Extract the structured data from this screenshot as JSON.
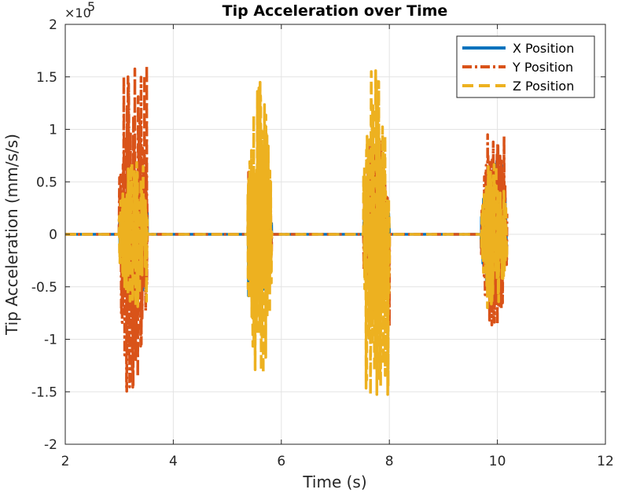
{
  "chart_data": {
    "type": "line",
    "title": "Tip Acceleration over Time",
    "xlabel": "Time (s)",
    "ylabel": "Tip Acceleration (mm/s/s)",
    "xlim": [
      2,
      12
    ],
    "ylim": [
      -200000,
      200000
    ],
    "xticks": [
      2,
      4,
      6,
      8,
      10,
      12
    ],
    "yticks": [
      -200000,
      -150000,
      -100000,
      -50000,
      0,
      50000,
      100000,
      150000,
      200000
    ],
    "xtick_labels": [
      "2",
      "4",
      "6",
      "8",
      "10",
      "12"
    ],
    "ytick_labels": [
      "-2",
      "-1.5",
      "-1",
      "-0.5",
      "0",
      "0.5",
      "1",
      "1.5",
      "2"
    ],
    "y_exponent_label": "×10",
    "y_exponent_power": "5",
    "grid": true,
    "legend_position": "top-right",
    "series": [
      {
        "name": "X Position",
        "color": "#0072BD",
        "style": "solid",
        "bursts": [
          {
            "t_start": 3.0,
            "t_end": 3.52,
            "amplitude": 60000
          },
          {
            "t_start": 5.38,
            "t_end": 5.82,
            "amplitude": 60000
          },
          {
            "t_start": 7.52,
            "t_end": 8.0,
            "amplitude": 58000
          },
          {
            "t_start": 9.7,
            "t_end": 10.18,
            "amplitude": 70000
          }
        ]
      },
      {
        "name": "Y Position",
        "color": "#D95319",
        "style": "dashdot",
        "bursts": [
          {
            "t_start": 3.0,
            "t_end": 3.52,
            "amplitude": 163000
          },
          {
            "t_start": 5.38,
            "t_end": 5.82,
            "amplitude": 60000
          },
          {
            "t_start": 7.52,
            "t_end": 8.0,
            "amplitude": 90000
          },
          {
            "t_start": 9.7,
            "t_end": 10.18,
            "amplitude": 95000
          }
        ]
      },
      {
        "name": "Z Position",
        "color": "#EDB120",
        "style": "dashed",
        "bursts": [
          {
            "t_start": 3.0,
            "t_end": 3.52,
            "amplitude": 70000
          },
          {
            "t_start": 5.38,
            "t_end": 5.82,
            "amplitude": 148000
          },
          {
            "t_start": 7.52,
            "t_end": 8.0,
            "amplitude": 158000
          },
          {
            "t_start": 9.7,
            "t_end": 10.18,
            "amplitude": 70000
          }
        ]
      }
    ]
  }
}
